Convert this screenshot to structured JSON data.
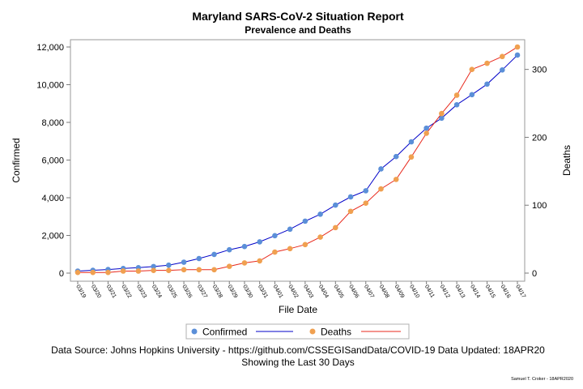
{
  "chart_data": {
    "type": "line",
    "title": "Maryland SARS-CoV-2 Situation Report",
    "subtitle": "Prevalence and Deaths",
    "xlabel": "File Date",
    "ylabel": "Confirmed",
    "y2label": "Deaths",
    "ylim": [
      0,
      12000
    ],
    "y2lim": [
      0,
      333
    ],
    "yticks": [
      "0",
      "2,000",
      "4,000",
      "6,000",
      "8,000",
      "10,000",
      "12,000"
    ],
    "ytick_values": [
      0,
      2000,
      4000,
      6000,
      8000,
      10000,
      12000
    ],
    "y2ticks": [
      "0",
      "100",
      "200",
      "300"
    ],
    "y2tick_values": [
      0,
      100,
      200,
      300
    ],
    "categories": [
      "03/19",
      "03/20",
      "03/21",
      "03/22",
      "03/23",
      "03/24",
      "03/25",
      "03/26",
      "03/27",
      "03/28",
      "03/29",
      "03/30",
      "03/31",
      "04/01",
      "04/02",
      "04/03",
      "04/04",
      "04/05",
      "04/06",
      "04/07",
      "04/08",
      "04/09",
      "04/10",
      "04/11",
      "04/12",
      "04/13",
      "04/14",
      "04/15",
      "04/16",
      "04/17"
    ],
    "series": [
      {
        "name": "Confirmed",
        "axis": "left",
        "marker_color": "#5b8fd8",
        "line_color": "#0000c8",
        "values": [
          107,
          149,
          190,
          244,
          288,
          349,
          423,
          580,
          774,
          992,
          1239,
          1413,
          1660,
          1985,
          2331,
          2758,
          3125,
          3609,
          4045,
          4371,
          5529,
          6185,
          6968,
          7694,
          8225,
          8936,
          9472,
          10032,
          10784,
          11572
        ]
      },
      {
        "name": "Deaths",
        "axis": "right",
        "marker_color": "#f0a050",
        "line_color": "#e8281c",
        "values": [
          1,
          1,
          1,
          3,
          3,
          4,
          4,
          5,
          5,
          5,
          10,
          15,
          18,
          31,
          36,
          42,
          53,
          67,
          91,
          103,
          124,
          138,
          171,
          206,
          235,
          262,
          300,
          309,
          319,
          333
        ]
      }
    ],
    "legend": "bottom",
    "grid": false
  },
  "footer": {
    "source": "Data Source: Johns Hopkins University - https://github.com/CSSEGISandData/COVID-19 Data Updated: 18APR20",
    "window": "Showing the Last 30 Days",
    "credit": "Samuel T. Croker - 18APR2020"
  }
}
